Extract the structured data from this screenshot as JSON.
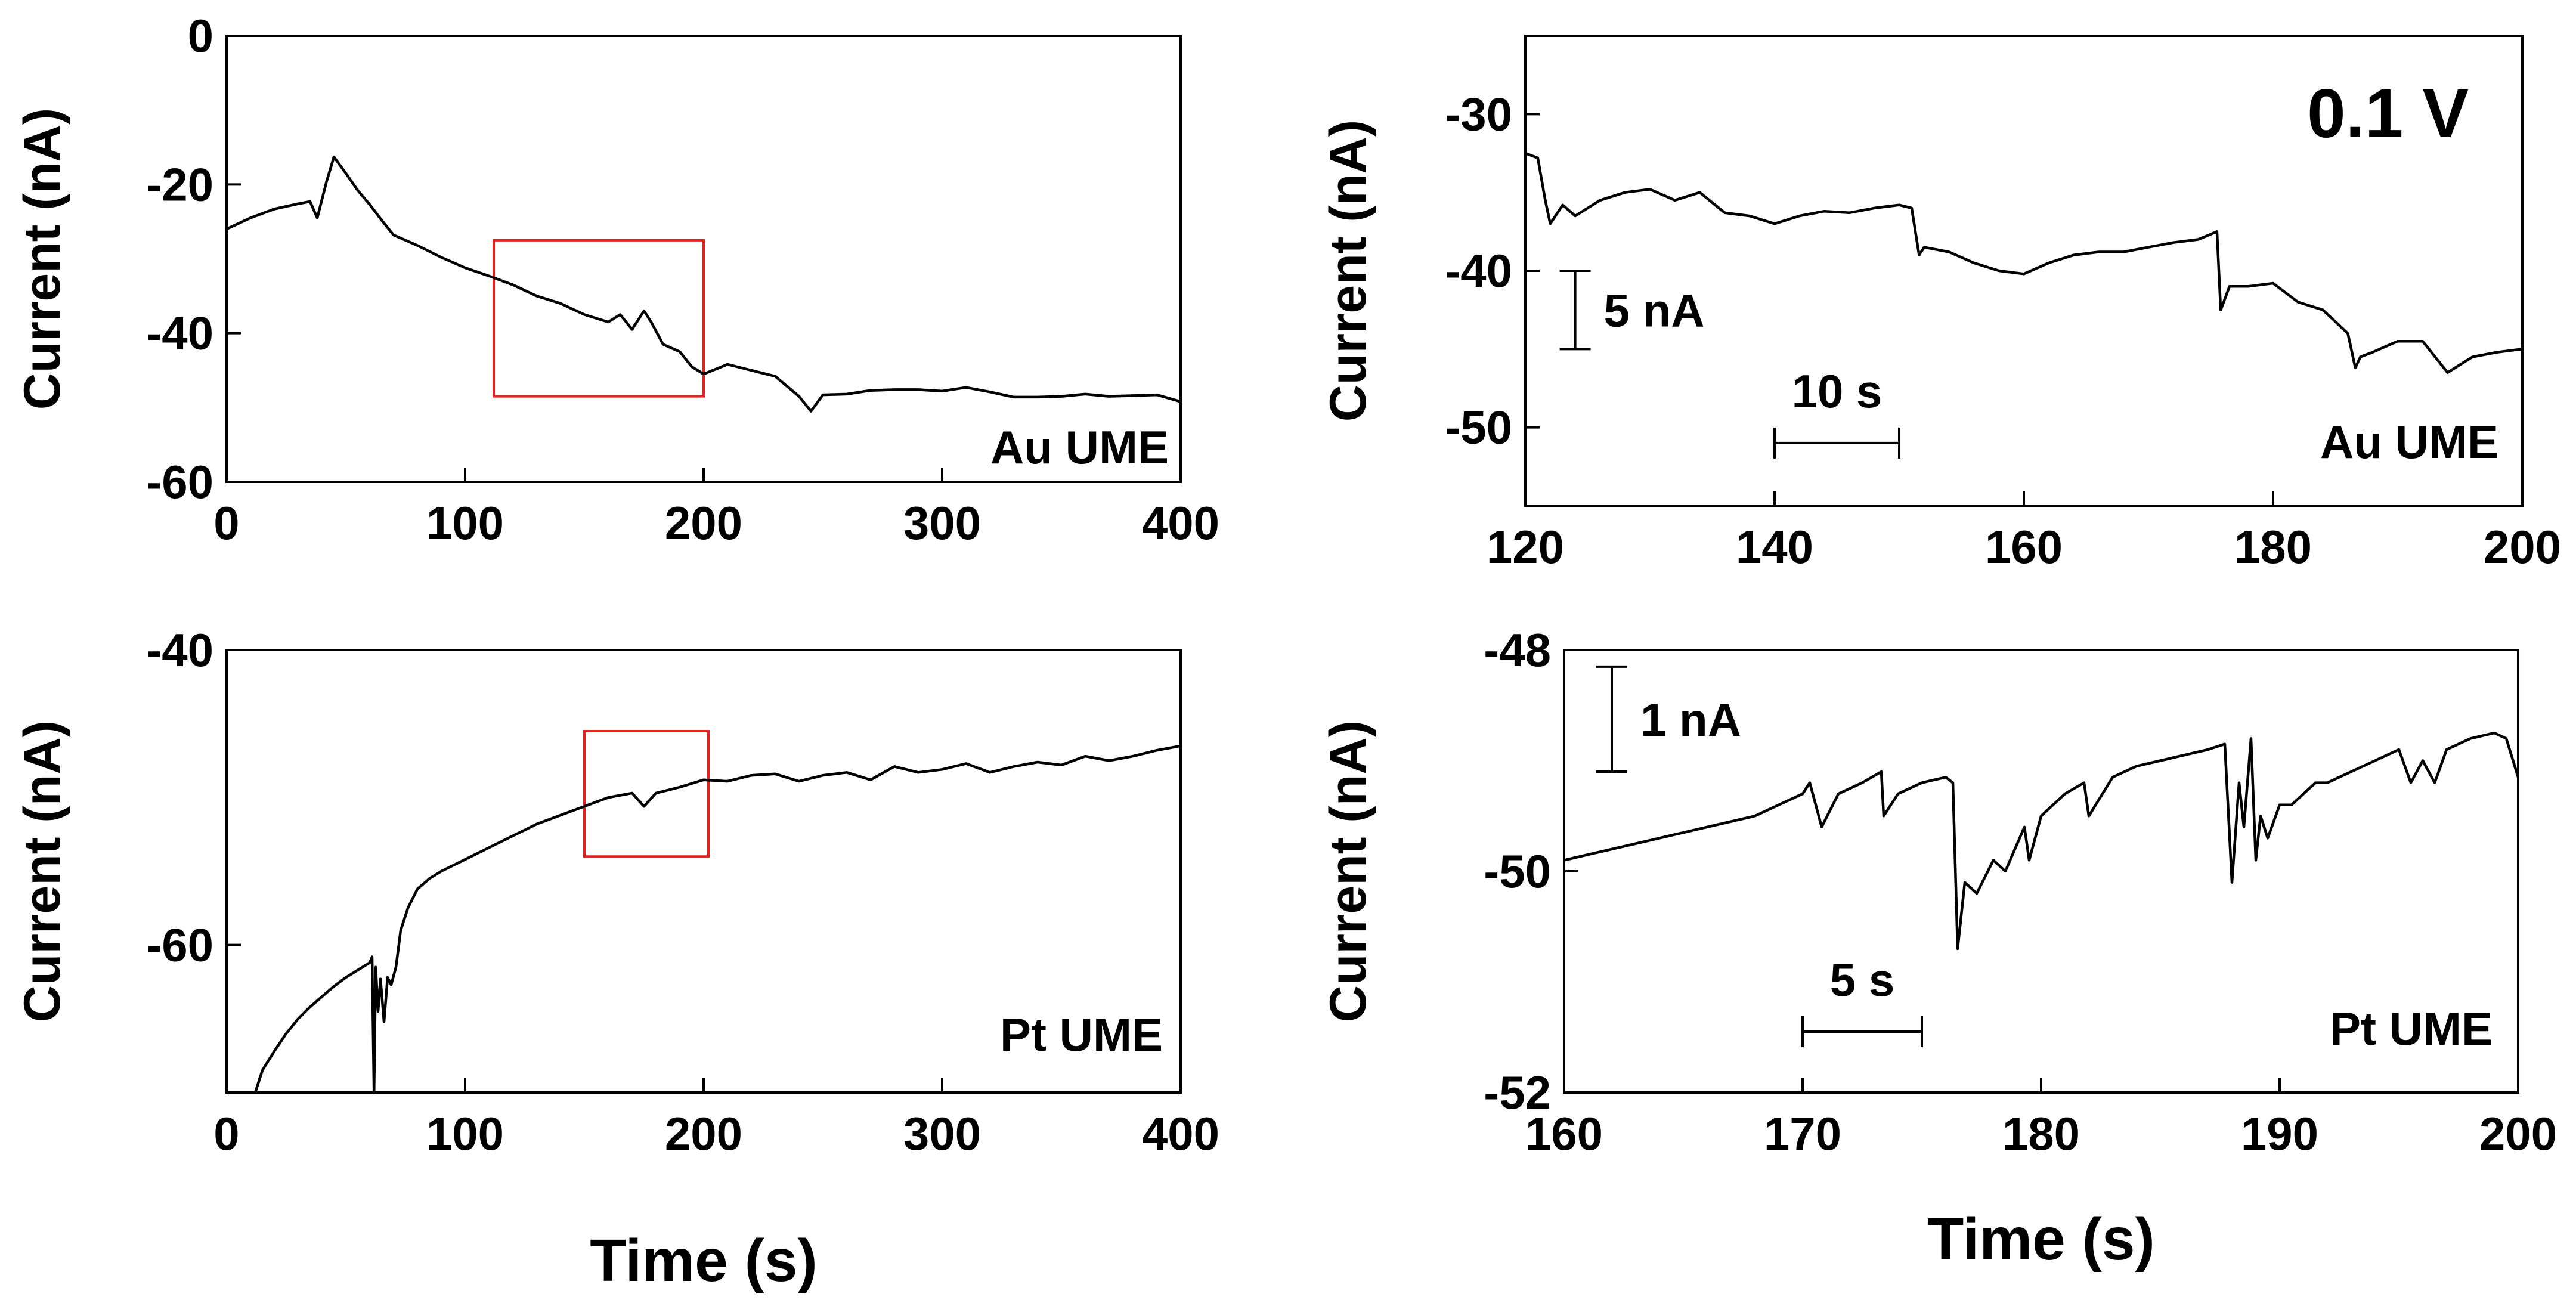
{
  "chart_data": [
    {
      "id": "a",
      "type": "line",
      "title": "",
      "xlabel": "",
      "ylabel": "Current (nA)",
      "xlim": [
        0,
        400
      ],
      "ylim": [
        -60,
        0
      ],
      "xticks": [
        0,
        100,
        200,
        300,
        400
      ],
      "yticks": [
        0,
        -20,
        -40,
        -60
      ],
      "annotation": "Au UME",
      "highlight_box": {
        "x": [
          112,
          200
        ],
        "y": [
          -27.5,
          -48.5
        ]
      },
      "series": [
        {
          "name": "Au UME",
          "x": [
            0,
            10,
            20,
            30,
            35,
            38,
            42,
            45,
            50,
            55,
            60,
            65,
            70,
            80,
            90,
            100,
            110,
            120,
            130,
            140,
            150,
            160,
            165,
            170,
            175,
            178,
            183,
            190,
            195,
            200,
            210,
            220,
            230,
            240,
            245,
            250,
            260,
            270,
            280,
            290,
            300,
            310,
            320,
            330,
            340,
            350,
            360,
            370,
            380,
            390,
            400
          ],
          "y": [
            -26,
            -24.5,
            -23.3,
            -22.6,
            -22.3,
            -24.5,
            -19.5,
            -16.3,
            -18.5,
            -20.8,
            -22.7,
            -24.8,
            -26.8,
            -28.2,
            -29.8,
            -31.2,
            -32.3,
            -33.5,
            -35,
            -36,
            -37.5,
            -38.5,
            -37.5,
            -39.5,
            -37,
            -38.5,
            -41.5,
            -42.5,
            -44.5,
            -45.5,
            -44.2,
            -45,
            -45.8,
            -48.5,
            -50.5,
            -48.3,
            -48.2,
            -47.7,
            -47.6,
            -47.6,
            -47.8,
            -47.3,
            -47.9,
            -48.6,
            -48.6,
            -48.5,
            -48.2,
            -48.5,
            -48.4,
            -48.3,
            -49.2
          ]
        }
      ]
    },
    {
      "id": "b",
      "type": "line",
      "title": "",
      "xlabel": "",
      "ylabel": "Current (nA)",
      "xlim": [
        120,
        200
      ],
      "ylim": [
        -55,
        -25
      ],
      "xticks": [
        120,
        140,
        160,
        180,
        200
      ],
      "yticks": [
        -30,
        -40,
        -50
      ],
      "annotation": "Au UME",
      "label": "0.1 V",
      "scale_bars": [
        {
          "label": "5 nA",
          "axis": "y",
          "at_x": 124,
          "from": -40,
          "to": -45
        },
        {
          "label": "10 s",
          "axis": "x",
          "at_y": -51,
          "from": 140,
          "to": 150
        }
      ],
      "series": [
        {
          "name": "Au UME",
          "x": [
            120,
            121,
            121.6,
            122,
            123,
            124,
            126,
            128,
            130,
            132,
            134,
            136,
            138,
            140,
            142,
            144,
            146,
            148,
            150,
            151,
            151.6,
            152,
            154,
            156,
            158,
            160,
            162,
            164,
            166,
            168,
            170,
            172,
            174,
            175.5,
            175.8,
            176.5,
            178,
            180,
            182,
            184,
            186,
            186.6,
            187,
            188,
            190,
            192,
            194,
            196,
            198,
            200
          ],
          "y": [
            -32.5,
            -32.8,
            -35.5,
            -37,
            -35.8,
            -36.5,
            -35.5,
            -35,
            -34.8,
            -35.5,
            -35,
            -36.3,
            -36.5,
            -37,
            -36.5,
            -36.2,
            -36.3,
            -36,
            -35.8,
            -36,
            -39,
            -38.5,
            -38.8,
            -39.5,
            -40,
            -40.2,
            -39.5,
            -39,
            -38.8,
            -38.8,
            -38.5,
            -38.2,
            -38,
            -37.5,
            -42.5,
            -41,
            -41,
            -40.8,
            -42,
            -42.5,
            -44,
            -46.2,
            -45.5,
            -45.2,
            -44.5,
            -44.5,
            -46.5,
            -45.5,
            -45.2,
            -45
          ]
        }
      ]
    },
    {
      "id": "c",
      "type": "line",
      "title": "",
      "xlabel": "Time (s)",
      "ylabel": "Current (nA)",
      "xlim": [
        0,
        400
      ],
      "ylim": [
        -70,
        -40
      ],
      "xticks": [
        0,
        100,
        200,
        300,
        400
      ],
      "yticks": [
        -40,
        -60
      ],
      "annotation": "Pt UME",
      "highlight_box": {
        "x": [
          150,
          202
        ],
        "y": [
          -45.5,
          -54
        ]
      },
      "series": [
        {
          "name": "Pt UME",
          "x": [
            12,
            15,
            20,
            25,
            30,
            35,
            40,
            45,
            50,
            55,
            60,
            61,
            61.8,
            62.5,
            63.5,
            64.5,
            66,
            67.5,
            69,
            71,
            73,
            76,
            80,
            85,
            90,
            100,
            110,
            120,
            130,
            140,
            150,
            160,
            170,
            175,
            180,
            190,
            200,
            210,
            220,
            230,
            240,
            250,
            260,
            270,
            280,
            290,
            300,
            310,
            320,
            330,
            340,
            350,
            360,
            370,
            380,
            390,
            400
          ],
          "y": [
            -70,
            -68.5,
            -67.2,
            -66,
            -65,
            -64.2,
            -63.5,
            -62.8,
            -62.2,
            -61.7,
            -61.2,
            -60.8,
            -70,
            -61.5,
            -64.5,
            -62.3,
            -65.2,
            -62.2,
            -62.7,
            -61.5,
            -59,
            -57.5,
            -56.2,
            -55.5,
            -55,
            -54.2,
            -53.4,
            -52.6,
            -51.8,
            -51.2,
            -50.6,
            -50,
            -49.7,
            -50.6,
            -49.7,
            -49.3,
            -48.8,
            -48.9,
            -48.5,
            -48.4,
            -48.9,
            -48.5,
            -48.3,
            -48.8,
            -47.9,
            -48.3,
            -48.1,
            -47.7,
            -48.3,
            -47.9,
            -47.6,
            -47.8,
            -47.2,
            -47.5,
            -47.2,
            -46.8,
            -46.5
          ]
        }
      ]
    },
    {
      "id": "d",
      "type": "line",
      "title": "",
      "xlabel": "Time (s)",
      "ylabel": "Current (nA)",
      "xlim": [
        160,
        200
      ],
      "ylim": [
        -52,
        -48
      ],
      "xticks": [
        160,
        170,
        180,
        190,
        200
      ],
      "yticks": [
        -48,
        -50,
        -52
      ],
      "annotation": "Pt UME",
      "scale_bars": [
        {
          "label": "1 nA",
          "axis": "y",
          "at_x": 162,
          "from": -48.15,
          "to": -49.1
        },
        {
          "label": "5 s",
          "axis": "x",
          "at_y": -51.45,
          "from": 170,
          "to": 175
        }
      ],
      "series": [
        {
          "name": "Pt UME",
          "x": [
            160,
            162,
            164,
            166,
            168,
            170,
            170.3,
            170.8,
            171.5,
            172.5,
            173.3,
            173.4,
            174,
            175,
            176,
            176.3,
            176.5,
            176.8,
            177.3,
            178,
            178.5,
            179.3,
            179.5,
            180,
            181,
            181.8,
            182,
            183,
            184,
            185,
            186,
            187,
            187.7,
            188,
            188.3,
            188.5,
            188.8,
            189,
            189.2,
            189.5,
            190,
            190.5,
            191,
            191.5,
            192,
            193,
            194,
            195,
            195.5,
            196,
            196.5,
            197,
            198,
            199,
            199.5,
            200
          ],
          "y": [
            -49.9,
            -49.8,
            -49.7,
            -49.6,
            -49.5,
            -49.3,
            -49.2,
            -49.6,
            -49.3,
            -49.2,
            -49.1,
            -49.5,
            -49.3,
            -49.2,
            -49.15,
            -49.2,
            -50.7,
            -50.1,
            -50.2,
            -49.9,
            -50.0,
            -49.6,
            -49.9,
            -49.5,
            -49.3,
            -49.2,
            -49.5,
            -49.15,
            -49.05,
            -49.0,
            -48.95,
            -48.9,
            -48.85,
            -50.1,
            -49.2,
            -49.6,
            -48.8,
            -49.9,
            -49.5,
            -49.7,
            -49.4,
            -49.4,
            -49.3,
            -49.2,
            -49.2,
            -49.1,
            -49.0,
            -48.9,
            -49.2,
            -49.0,
            -49.2,
            -48.9,
            -48.8,
            -48.75,
            -48.8,
            -49.15
          ]
        }
      ]
    }
  ]
}
